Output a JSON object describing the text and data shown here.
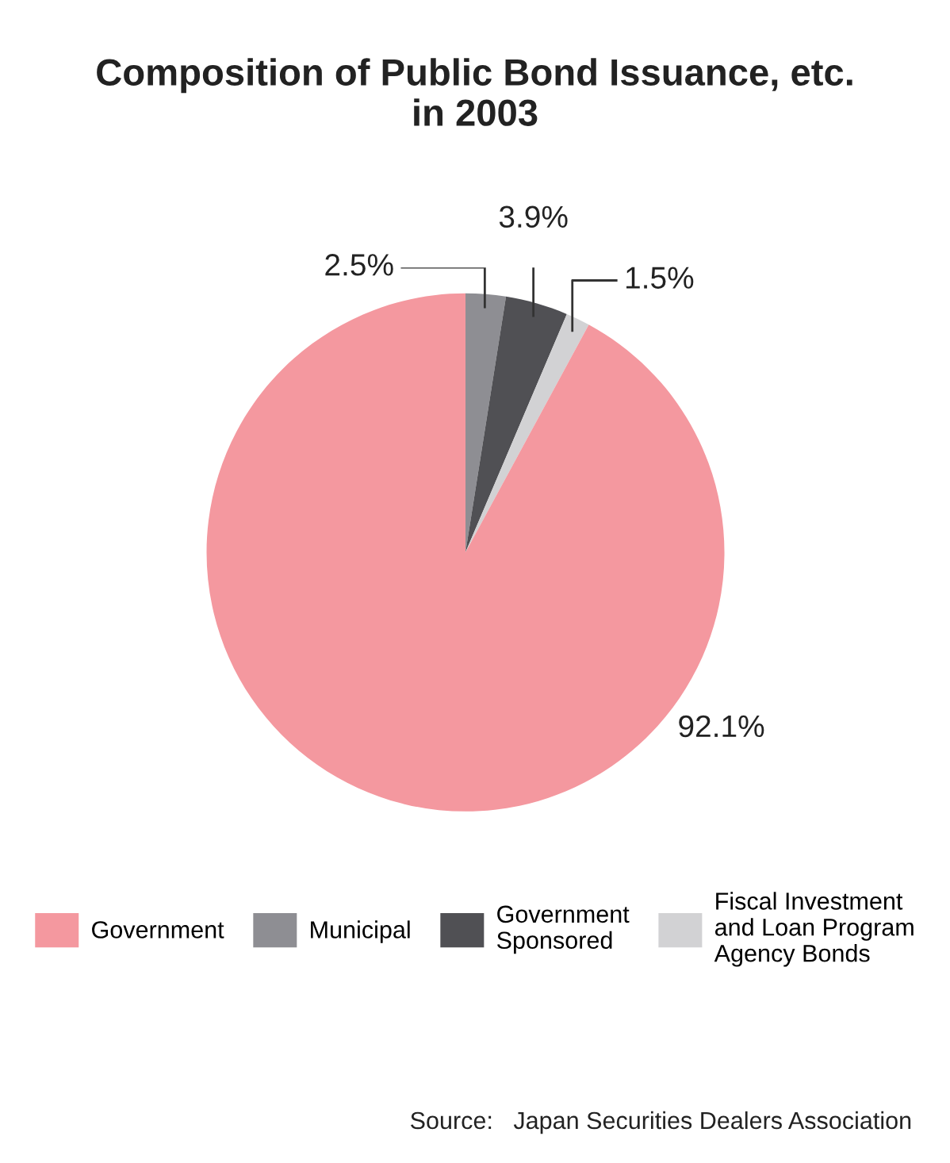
{
  "chart_data": {
    "type": "pie",
    "title": "Composition of Public Bond Issuance, etc.\nin 2003",
    "categories": [
      "Government",
      "Municipal",
      "Government\nSponsored",
      "Fiscal Investment\nand Loan Program\nAgency Bonds"
    ],
    "values": [
      92.1,
      2.5,
      3.9,
      1.5
    ],
    "value_labels": [
      "92.1%",
      "2.5%",
      "3.9%",
      "1.5%"
    ],
    "colors": [
      "#f4989f",
      "#8e8e93",
      "#505054",
      "#d2d2d4"
    ],
    "legend": "bottom",
    "annotations": [
      "Source:   Japan Securities Dealers Association"
    ]
  }
}
